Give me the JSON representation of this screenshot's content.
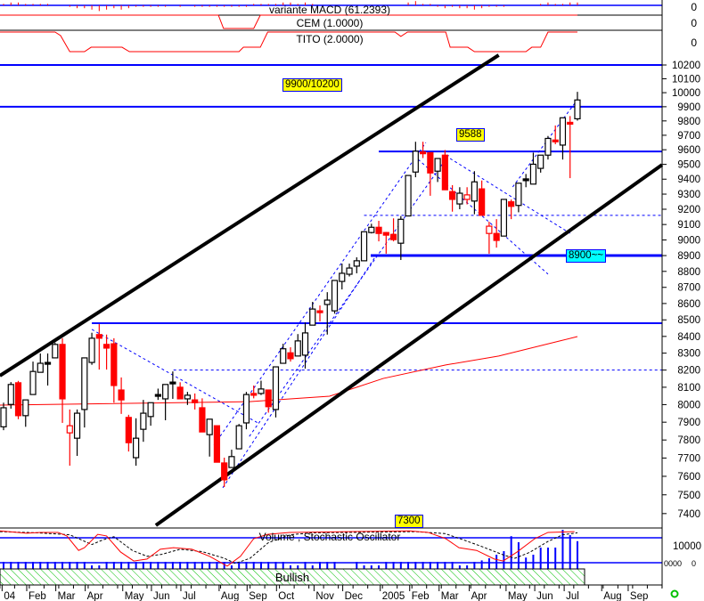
{
  "chart_data": {
    "type": "candlestick",
    "price_scale": "log",
    "ylim": [
      7400,
      10200
    ],
    "y_ticks": [
      10200,
      10100,
      10000,
      9900,
      9800,
      9700,
      9600,
      9500,
      9400,
      9300,
      9200,
      9100,
      9000,
      8900,
      8800,
      8700,
      8600,
      8500,
      8400,
      8300,
      8200,
      8100,
      8000,
      7900,
      7800,
      7700,
      7600,
      7500,
      7400
    ],
    "x_unit": "week",
    "month_labels": [
      {
        "label": "04",
        "week": -0.2
      },
      {
        "label": "Feb",
        "week": 3.15
      },
      {
        "label": "Mar",
        "week": 7.1
      },
      {
        "label": "Apr",
        "week": 11.1
      },
      {
        "label": "May",
        "week": 16.2
      },
      {
        "label": "Jun",
        "week": 20.1
      },
      {
        "label": "Jul",
        "week": 24.1
      },
      {
        "label": "Aug",
        "week": 29.3
      },
      {
        "label": "Sep",
        "week": 33.1
      },
      {
        "label": "Oct",
        "week": 37.1
      },
      {
        "label": "Nov",
        "week": 42.2
      },
      {
        "label": "Dec",
        "week": 46.1
      },
      {
        "label": "2005",
        "week": 51.2
      },
      {
        "label": "Feb",
        "week": 55.2
      },
      {
        "label": "Mar",
        "week": 59.2
      },
      {
        "label": "Apr",
        "week": 63.3
      },
      {
        "label": "May",
        "week": 68.3
      },
      {
        "label": "Jun",
        "week": 72.2
      },
      {
        "label": "Jul",
        "week": 76.2
      },
      {
        "label": "Aug",
        "week": 81.3
      },
      {
        "label": "Sep",
        "week": 84.9
      }
    ],
    "candles_ohlc": [
      [
        7874,
        8011,
        7855,
        7982
      ],
      [
        8001,
        8130,
        7977,
        8116
      ],
      [
        8126,
        8137,
        7917,
        7937
      ],
      [
        7937,
        8027,
        7874,
        8027
      ],
      [
        8058,
        8250,
        8058,
        8192
      ],
      [
        8187,
        8298,
        8187,
        8240
      ],
      [
        8245,
        8298,
        8110,
        8245
      ],
      [
        8272,
        8363,
        8272,
        8352
      ],
      [
        8352,
        8389,
        7896,
        8033
      ],
      [
        7880,
        7972,
        7658,
        7840
      ],
      [
        7810,
        7972,
        7712,
        7951
      ],
      [
        7972,
        8272,
        7870,
        8272
      ],
      [
        8245,
        8422,
        8231,
        8389
      ],
      [
        8411,
        8474,
        8203,
        8389
      ],
      [
        8352,
        8411,
        8203,
        8330
      ],
      [
        8356,
        8389,
        8011,
        8110
      ],
      [
        8084,
        8157,
        7947,
        8027
      ],
      [
        7927,
        7942,
        7736,
        7785
      ],
      [
        7702,
        7922,
        7658,
        7810
      ],
      [
        7860,
        8027,
        7790,
        7951
      ],
      [
        7932,
        8011,
        7880,
        8011
      ],
      [
        8058,
        8092,
        8027,
        8058
      ],
      [
        8033,
        8116,
        7911,
        8116
      ],
      [
        8130,
        8192,
        8033,
        8130
      ],
      [
        8100,
        8129,
        8033,
        8033
      ],
      [
        8033,
        8073,
        7998,
        8054
      ],
      [
        8027,
        8064,
        7972,
        8011
      ],
      [
        7982,
        8036,
        7845,
        7845
      ],
      [
        7830,
        7917,
        7708,
        7917
      ],
      [
        7880,
        7880,
        7677,
        7677
      ],
      [
        7673,
        7702,
        7542,
        7581
      ],
      [
        7648,
        7746,
        7648,
        7708
      ],
      [
        7751,
        7890,
        7751,
        7880
      ],
      [
        7896,
        8073,
        7860,
        8058
      ],
      [
        8064,
        8110,
        8036,
        8064
      ],
      [
        8064,
        8138,
        8055,
        8090
      ],
      [
        8084,
        8084,
        7954,
        7988
      ],
      [
        7972,
        8219,
        7927,
        8219
      ],
      [
        8240,
        8356,
        8240,
        8326
      ],
      [
        8302,
        8335,
        8250,
        8267
      ],
      [
        8283,
        8414,
        8283,
        8373
      ],
      [
        8288,
        8484,
        8209,
        8421
      ],
      [
        8468,
        8610,
        8468,
        8566
      ],
      [
        8555,
        8588,
        8490,
        8555
      ],
      [
        8594,
        8670,
        8411,
        8621
      ],
      [
        8555,
        8743,
        8538,
        8743
      ],
      [
        8737,
        8849,
        8687,
        8788
      ],
      [
        8782,
        8849,
        8768,
        8821
      ],
      [
        8833,
        8889,
        8788,
        8867
      ],
      [
        8867,
        9053,
        8867,
        9053
      ],
      [
        9048,
        9105,
        9042,
        9082
      ],
      [
        9082,
        9124,
        8991,
        9042
      ],
      [
        9048,
        9052,
        8912,
        9031
      ],
      [
        9036,
        9140,
        8991,
        9002
      ],
      [
        8979,
        9155,
        8872,
        9134
      ],
      [
        9156,
        9425,
        9156,
        9425
      ],
      [
        9448,
        9655,
        9413,
        9590
      ],
      [
        9585,
        9655,
        9543,
        9573
      ],
      [
        9580,
        9580,
        9289,
        9442
      ],
      [
        9454,
        9540,
        9381,
        9540
      ],
      [
        9563,
        9598,
        9348,
        9329
      ],
      [
        9317,
        9360,
        9184,
        9265
      ],
      [
        9235,
        9346,
        9200,
        9306
      ],
      [
        9265,
        9346,
        9232,
        9295
      ],
      [
        9254,
        9454,
        9167,
        9382
      ],
      [
        9335,
        9391,
        9160,
        9160
      ],
      [
        9089,
        9118,
        8912,
        9042
      ],
      [
        9042,
        9135,
        8951,
        8997
      ],
      [
        9025,
        9265,
        9025,
        9265
      ],
      [
        9249,
        9264,
        9135,
        9219
      ],
      [
        9225,
        9373,
        9180,
        9373
      ],
      [
        9402,
        9435,
        9346,
        9402
      ],
      [
        9367,
        9580,
        9367,
        9501
      ],
      [
        9473,
        9563,
        9444,
        9563
      ],
      [
        9563,
        9695,
        9533,
        9678
      ],
      [
        9667,
        9768,
        9638,
        9667
      ],
      [
        9632,
        9822,
        9533,
        9822
      ],
      [
        9790,
        9834,
        9407,
        9790
      ],
      [
        9815,
        10006,
        9802,
        9948
      ]
    ],
    "hollow_down_weeks": [
      9,
      63,
      66
    ],
    "doji_black_weeks": [
      6,
      21,
      23,
      71
    ],
    "moving_average": [
      [
        -0.5,
        7997
      ],
      [
        33.4,
        8017
      ],
      [
        44.3,
        8048
      ],
      [
        51.6,
        8151
      ],
      [
        60.1,
        8230
      ],
      [
        67.3,
        8283
      ],
      [
        78,
        8399
      ]
    ],
    "channel_lines": [
      {
        "from": [
          -0.5,
          8167
        ],
        "to": [
          67.3,
          10272
        ]
      },
      {
        "from": [
          20.7,
          7338
        ],
        "to": [
          89.5,
          9497
        ]
      }
    ],
    "horizontal_lines": [
      {
        "price": 10200,
        "from_week": -0.5
      },
      {
        "price": 9900,
        "from_week": -0.5
      },
      {
        "price": 9588,
        "from_week": 51
      },
      {
        "price": 8900,
        "from_week": 49.9,
        "thick": true
      },
      {
        "price": 8480,
        "from_week": 12
      }
    ],
    "dashed_horizontal_lines": [
      {
        "price": 9160,
        "from_week": 49
      },
      {
        "price": 8200,
        "from_week": 23.1
      }
    ],
    "dashed_trend_lines": [
      {
        "from": [
          12,
          8442
        ],
        "to": [
          34.6,
          7895
        ]
      },
      {
        "from": [
          28.6,
          7772
        ],
        "to": [
          57.4,
          9650
        ]
      },
      {
        "from": [
          33.4,
          7820
        ],
        "to": [
          60.7,
          9577
        ]
      },
      {
        "from": [
          29.8,
          7538
        ],
        "to": [
          50.4,
          8883
        ]
      },
      {
        "from": [
          55.8,
          9558
        ],
        "to": [
          74,
          8783
        ]
      },
      {
        "from": [
          60.7,
          9540
        ],
        "to": [
          77,
          9043
        ]
      },
      {
        "from": [
          69.2,
          9348
        ],
        "to": [
          78,
          9950
        ]
      }
    ],
    "annotations": [
      {
        "text": "9900/10200",
        "color": "#ffff00"
      },
      {
        "text": "9588",
        "color": "#ffff00"
      },
      {
        "text": "8900~~",
        "color": "#00ffff"
      },
      {
        "text": "7300",
        "color": "#ffff00"
      }
    ],
    "macd": {
      "title": "variante MACD (61.2393)",
      "zero_label": "0",
      "histogram": [
        1,
        2,
        2,
        1,
        1,
        1,
        1,
        0,
        0,
        -1,
        -2,
        -2,
        -3,
        -4,
        -3,
        -2,
        -3,
        -2,
        -1,
        -1,
        -1,
        -1,
        -1,
        0,
        -1,
        0,
        -1,
        -1,
        -1,
        -1,
        -1,
        -1,
        -1,
        -1,
        1,
        1,
        1,
        1,
        2,
        2,
        1,
        2,
        1,
        0,
        0,
        0,
        0,
        0,
        0,
        0,
        0,
        0,
        0,
        0,
        0,
        2,
        3,
        1,
        1,
        -1,
        -2,
        -1,
        -2,
        -2,
        -3,
        -2,
        -1,
        -1,
        -1,
        0,
        0,
        0,
        0,
        1,
        2,
        1,
        1,
        2,
        2
      ]
    },
    "cem": {
      "title": "CEM (1.0000)",
      "zero_label": "0",
      "points": [
        [
          -0.5,
          1
        ],
        [
          29.2,
          1
        ],
        [
          29.9,
          0
        ],
        [
          34,
          0
        ],
        [
          34.9,
          1
        ],
        [
          78,
          1
        ]
      ]
    },
    "tito": {
      "title": "TITO (2.0000)",
      "zero_label": "0",
      "points": [
        [
          -0.5,
          2
        ],
        [
          7,
          2
        ],
        [
          7.75,
          1.64
        ],
        [
          9,
          0
        ],
        [
          11,
          0
        ],
        [
          11.9,
          0.45
        ],
        [
          16.1,
          0.45
        ],
        [
          17.1,
          0
        ],
        [
          32,
          0
        ],
        [
          32.6,
          0.45
        ],
        [
          34.9,
          0.45
        ],
        [
          35.9,
          2
        ],
        [
          53.2,
          2
        ],
        [
          54,
          1.55
        ],
        [
          54.9,
          2
        ],
        [
          60.1,
          2
        ],
        [
          60.7,
          0.45
        ],
        [
          63.1,
          0.45
        ],
        [
          64,
          0
        ],
        [
          71,
          0
        ],
        [
          71.8,
          0.45
        ],
        [
          73,
          0.45
        ],
        [
          74,
          2
        ],
        [
          78,
          2
        ]
      ]
    },
    "stochastic": {
      "title": "Volume , Stochastic Oscillator",
      "axis_label": "10000",
      "bottom_labels": [
        "0000",
        "0"
      ],
      "k": [
        [
          -0.5,
          95
        ],
        [
          3.1,
          89
        ],
        [
          5,
          91
        ],
        [
          7.4,
          91
        ],
        [
          8.6,
          82
        ],
        [
          10.2,
          45
        ],
        [
          11,
          52
        ],
        [
          12.8,
          86
        ],
        [
          14,
          82
        ],
        [
          15.9,
          41
        ],
        [
          17.7,
          18
        ],
        [
          19.5,
          23
        ],
        [
          21.3,
          48
        ],
        [
          23.1,
          52
        ],
        [
          25.6,
          48
        ],
        [
          28,
          30
        ],
        [
          30.4,
          5
        ],
        [
          32.2,
          30
        ],
        [
          34,
          75
        ],
        [
          35.9,
          86
        ],
        [
          38.9,
          91
        ],
        [
          55.2,
          95
        ],
        [
          57.7,
          91
        ],
        [
          60.1,
          75
        ],
        [
          61.9,
          52
        ],
        [
          64.3,
          45
        ],
        [
          66.7,
          23
        ],
        [
          67.9,
          18
        ],
        [
          69.8,
          41
        ],
        [
          72.2,
          75
        ],
        [
          74,
          91
        ],
        [
          77.6,
          93
        ]
      ],
      "d": [
        [
          -0.5,
          93
        ],
        [
          4.5,
          90
        ],
        [
          9,
          85
        ],
        [
          12,
          60
        ],
        [
          13.5,
          72
        ],
        [
          15,
          80
        ],
        [
          17.5,
          45
        ],
        [
          19.5,
          30
        ],
        [
          21.5,
          35
        ],
        [
          24,
          48
        ],
        [
          27,
          42
        ],
        [
          30,
          25
        ],
        [
          31.5,
          12
        ],
        [
          33.5,
          25
        ],
        [
          36,
          65
        ],
        [
          39,
          85
        ],
        [
          42,
          90
        ],
        [
          56,
          93
        ],
        [
          60,
          88
        ],
        [
          62.5,
          72
        ],
        [
          65,
          55
        ],
        [
          68,
          33
        ],
        [
          69.5,
          25
        ],
        [
          71.5,
          40
        ],
        [
          74,
          68
        ],
        [
          76,
          85
        ],
        [
          78,
          90
        ]
      ]
    },
    "volume": [
      1,
      1,
      1,
      1,
      1,
      1,
      1,
      1,
      1,
      1,
      1,
      1,
      0.5,
      0.5,
      1,
      1,
      1,
      1,
      1,
      1,
      1,
      1,
      1,
      1,
      1,
      1,
      1,
      1,
      1,
      1,
      1,
      0.5,
      1,
      1,
      1,
      1,
      1,
      1,
      1,
      0.5,
      0.5,
      1,
      0.5,
      1,
      1,
      1,
      0,
      0,
      1,
      0.5,
      0.5,
      0.5,
      1,
      1,
      1,
      1,
      1,
      1,
      1,
      1,
      1,
      1,
      0.5,
      0.5,
      1,
      1.2,
      1.5,
      2,
      2.5,
      4.6,
      3.75,
      1.6,
      2,
      3,
      3,
      3,
      5.5,
      4.75,
      3.9
    ],
    "signal_band": {
      "label": "Bullish",
      "color": "#00c000"
    },
    "colors": {
      "up": "#ffffff",
      "down": "#ff0000",
      "level_line": "#0000ff",
      "channel": "#000000",
      "ma": "#ff0000"
    }
  }
}
